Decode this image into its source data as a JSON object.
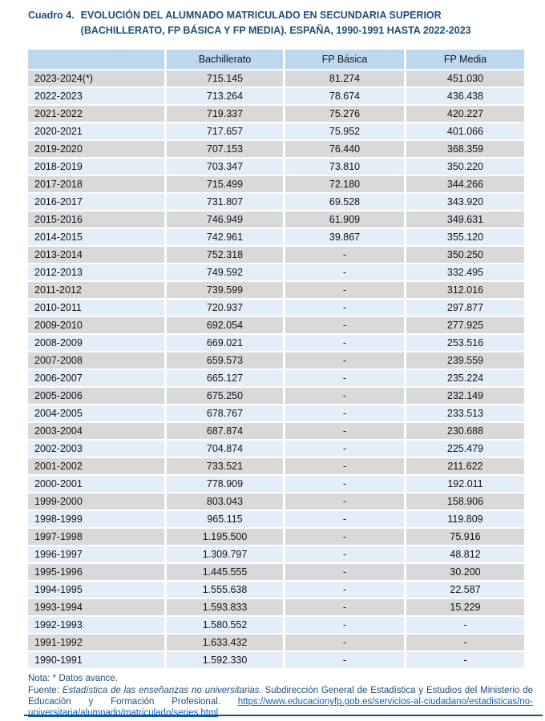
{
  "title": {
    "label": "Cuadro 4.",
    "line1": "EVOLUCIÓN DEL ALUMNADO MATRICULADO EN SECUNDARIA SUPERIOR",
    "line2": "(BACHILLERATO, FP BÁSICA Y FP MEDIA). ESPAÑA, 1990-1991 HASTA 2022-2023"
  },
  "table": {
    "columns": [
      "",
      "Bachillerato",
      "FP Básica",
      "FP Media"
    ],
    "rows": [
      {
        "year": "2023-2024(*)",
        "bachillerato": "715.145",
        "fp_basica": "81.274",
        "fp_media": "451.030"
      },
      {
        "year": "2022-2023",
        "bachillerato": "713.264",
        "fp_basica": "78.674",
        "fp_media": "436.438"
      },
      {
        "year": "2021-2022",
        "bachillerato": "719.337",
        "fp_basica": "75.276",
        "fp_media": "420.227"
      },
      {
        "year": "2020-2021",
        "bachillerato": "717.657",
        "fp_basica": "75.952",
        "fp_media": "401.066"
      },
      {
        "year": "2019-2020",
        "bachillerato": "707.153",
        "fp_basica": "76.440",
        "fp_media": "368.359"
      },
      {
        "year": "2018-2019",
        "bachillerato": "703.347",
        "fp_basica": "73.810",
        "fp_media": "350.220"
      },
      {
        "year": "2017-2018",
        "bachillerato": "715.499",
        "fp_basica": "72.180",
        "fp_media": "344.266"
      },
      {
        "year": "2016-2017",
        "bachillerato": "731.807",
        "fp_basica": "69.528",
        "fp_media": "343.920"
      },
      {
        "year": "2015-2016",
        "bachillerato": "746.949",
        "fp_basica": "61.909",
        "fp_media": "349.631"
      },
      {
        "year": "2014-2015",
        "bachillerato": "742.961",
        "fp_basica": "39.867",
        "fp_media": "355.120"
      },
      {
        "year": "2013-2014",
        "bachillerato": "752.318",
        "fp_basica": "-",
        "fp_media": "350.250"
      },
      {
        "year": "2012-2013",
        "bachillerato": "749.592",
        "fp_basica": "-",
        "fp_media": "332.495"
      },
      {
        "year": "2011-2012",
        "bachillerato": "739.599",
        "fp_basica": "-",
        "fp_media": "312.016"
      },
      {
        "year": "2010-2011",
        "bachillerato": "720.937",
        "fp_basica": "-",
        "fp_media": "297.877"
      },
      {
        "year": "2009-2010",
        "bachillerato": "692.054",
        "fp_basica": "-",
        "fp_media": "277.925"
      },
      {
        "year": "2008-2009",
        "bachillerato": "669.021",
        "fp_basica": "-",
        "fp_media": "253.516"
      },
      {
        "year": "2007-2008",
        "bachillerato": "659.573",
        "fp_basica": "-",
        "fp_media": "239.559"
      },
      {
        "year": "2006-2007",
        "bachillerato": "665.127",
        "fp_basica": "-",
        "fp_media": "235.224"
      },
      {
        "year": "2005-2006",
        "bachillerato": "675.250",
        "fp_basica": "-",
        "fp_media": "232.149"
      },
      {
        "year": "2004-2005",
        "bachillerato": "678.767",
        "fp_basica": "-",
        "fp_media": "233.513"
      },
      {
        "year": "2003-2004",
        "bachillerato": "687.874",
        "fp_basica": "-",
        "fp_media": "230.688"
      },
      {
        "year": "2002-2003",
        "bachillerato": "704.874",
        "fp_basica": "-",
        "fp_media": "225.479"
      },
      {
        "year": "2001-2002",
        "bachillerato": "733.521",
        "fp_basica": "-",
        "fp_media": "211.622"
      },
      {
        "year": "2000-2001",
        "bachillerato": "778.909",
        "fp_basica": "-",
        "fp_media": "192.011"
      },
      {
        "year": "1999-2000",
        "bachillerato": "803.043",
        "fp_basica": "-",
        "fp_media": "158.906"
      },
      {
        "year": "1998-1999",
        "bachillerato": "965.115",
        "fp_basica": "-",
        "fp_media": "119.809"
      },
      {
        "year": "1997-1998",
        "bachillerato": "1.195.500",
        "fp_basica": "-",
        "fp_media": "75.916"
      },
      {
        "year": "1996-1997",
        "bachillerato": "1.309.797",
        "fp_basica": "-",
        "fp_media": "48.812"
      },
      {
        "year": "1995-1996",
        "bachillerato": "1.445.555",
        "fp_basica": "-",
        "fp_media": "30.200"
      },
      {
        "year": "1994-1995",
        "bachillerato": "1.555.638",
        "fp_basica": "-",
        "fp_media": "22.587"
      },
      {
        "year": "1993-1994",
        "bachillerato": "1.593.833",
        "fp_basica": "-",
        "fp_media": "15.229"
      },
      {
        "year": "1992-1993",
        "bachillerato": "1.580.552",
        "fp_basica": "-",
        "fp_media": "-"
      },
      {
        "year": "1991-1992",
        "bachillerato": "1.633.432",
        "fp_basica": "-",
        "fp_media": "-"
      },
      {
        "year": "1990-1991",
        "bachillerato": "1.592.330",
        "fp_basica": "-",
        "fp_media": "-"
      }
    ]
  },
  "footer": {
    "note": "Nota: * Datos avance.",
    "source_label": "Fuente:",
    "source_publication": "Estadística de las enseñanzas no universitarias.",
    "source_org": "Subdirección General de Estadística y Estudios del Ministerio de Educación y Formación Profesional.",
    "source_url": "https://www.educacionyfp.gob.es/servicios-al-ciudadano/estadisticas/no-universitaria/alumnado/matriculado/series.html"
  },
  "colors": {
    "title_navy": "#1F4E79",
    "header_band_blue": "#BDD7EE",
    "row_gray": "#D9D9D9",
    "row_pale_blue": "#E3EEF8",
    "link_blue": "#0563C1"
  }
}
